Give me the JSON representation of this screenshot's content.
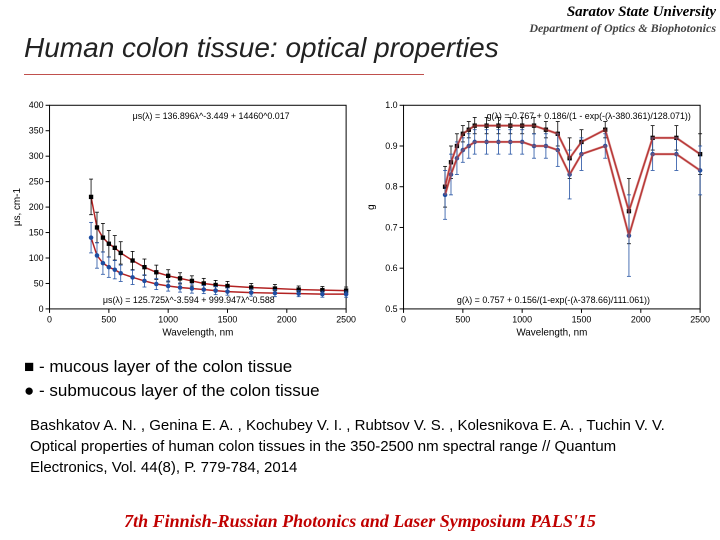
{
  "header": {
    "university": "Saratov State University",
    "department": "Department of Optics & Biophotonics"
  },
  "title": "Human colon tissue: optical properties",
  "chart_left": {
    "type": "scatter+line",
    "xlabel": "Wavelength, nm",
    "ylabel_html": "μs, cm-1",
    "xlim": [
      0,
      2500
    ],
    "xtick_step": 500,
    "ylim": [
      0,
      400
    ],
    "ytick_step": 50,
    "eq_top": "μs(λ) = 136.896λ^-3.449 + 14460^0.017",
    "eq_bottom": "μs(λ) = 125.725λ^-3.594 + 999.947λ^-0.588",
    "background": "#ffffff",
    "series": [
      {
        "name": "mucous",
        "marker": "square",
        "color_marker": "#000000",
        "color_line": "#b22222",
        "x": [
          350,
          400,
          450,
          500,
          550,
          600,
          700,
          800,
          900,
          1000,
          1100,
          1200,
          1300,
          1400,
          1500,
          1700,
          1900,
          2100,
          2300,
          2500
        ],
        "y": [
          220,
          160,
          140,
          128,
          120,
          110,
          95,
          82,
          72,
          65,
          60,
          55,
          50,
          47,
          45,
          42,
          40,
          38,
          37,
          36
        ],
        "yerr": [
          35,
          30,
          28,
          26,
          24,
          22,
          18,
          16,
          14,
          12,
          11,
          10,
          10,
          9,
          9,
          8,
          8,
          7,
          7,
          7
        ]
      },
      {
        "name": "submucous",
        "marker": "circle",
        "color_marker": "#1f4ea1",
        "color_line": "#b22222",
        "x": [
          350,
          400,
          450,
          500,
          550,
          600,
          700,
          800,
          900,
          1000,
          1100,
          1200,
          1300,
          1400,
          1500,
          1700,
          1900,
          2100,
          2300,
          2500
        ],
        "y": [
          140,
          105,
          90,
          82,
          77,
          70,
          62,
          55,
          49,
          45,
          42,
          40,
          38,
          36,
          34,
          32,
          31,
          30,
          29,
          29
        ],
        "yerr": [
          30,
          25,
          22,
          20,
          18,
          16,
          14,
          12,
          11,
          10,
          9,
          9,
          8,
          8,
          7,
          7,
          7,
          6,
          6,
          6
        ]
      }
    ]
  },
  "chart_right": {
    "type": "scatter+line",
    "xlabel": "Wavelength, nm",
    "ylabel": "g",
    "xlim": [
      0,
      2500
    ],
    "xtick_step": 500,
    "ylim": [
      0.5,
      1.0
    ],
    "ytick_step": 0.1,
    "eq_top": "g(λ) = 0.767 + 0.186/(1 - exp(-(λ-380.361)/128.071))",
    "eq_bottom": "g(λ) = 0.757 + 0.156/(1-exp(-(λ-378.66)/111.061))",
    "background": "#ffffff",
    "series": [
      {
        "name": "mucous",
        "marker": "square",
        "color_marker": "#000000",
        "color_line": "#b22222",
        "x": [
          350,
          400,
          450,
          500,
          550,
          600,
          700,
          800,
          900,
          1000,
          1100,
          1200,
          1300,
          1400,
          1500,
          1700,
          1900,
          2100,
          2300,
          2500
        ],
        "y": [
          0.8,
          0.86,
          0.9,
          0.93,
          0.94,
          0.95,
          0.95,
          0.95,
          0.95,
          0.95,
          0.95,
          0.94,
          0.93,
          0.87,
          0.91,
          0.94,
          0.74,
          0.92,
          0.92,
          0.88
        ],
        "yerr": [
          0.05,
          0.04,
          0.03,
          0.02,
          0.02,
          0.02,
          0.02,
          0.02,
          0.02,
          0.02,
          0.02,
          0.02,
          0.03,
          0.05,
          0.03,
          0.02,
          0.08,
          0.03,
          0.03,
          0.05
        ]
      },
      {
        "name": "submucous",
        "marker": "circle",
        "color_marker": "#1f4ea1",
        "color_line": "#b22222",
        "x": [
          350,
          400,
          450,
          500,
          550,
          600,
          700,
          800,
          900,
          1000,
          1100,
          1200,
          1300,
          1400,
          1500,
          1700,
          1900,
          2100,
          2300,
          2500
        ],
        "y": [
          0.78,
          0.83,
          0.87,
          0.89,
          0.9,
          0.91,
          0.91,
          0.91,
          0.91,
          0.91,
          0.9,
          0.9,
          0.89,
          0.83,
          0.88,
          0.9,
          0.68,
          0.88,
          0.88,
          0.84
        ],
        "yerr": [
          0.06,
          0.05,
          0.04,
          0.03,
          0.03,
          0.03,
          0.03,
          0.03,
          0.03,
          0.03,
          0.03,
          0.03,
          0.04,
          0.06,
          0.04,
          0.03,
          0.1,
          0.04,
          0.04,
          0.06
        ]
      }
    ],
    "envelope_color": "#c0504d"
  },
  "legend": {
    "row1": "■ - mucous layer of the colon tissue",
    "row2": "● - submucous layer of the colon tissue"
  },
  "citation": "Bashkatov A. N. , Genina E. A. , Kochubey V. I. , Rubtsov V. S. , Kolesnikova E. A. , Tuchin V. V. Optical properties of human colon tissues in the 350-2500 nm spectral range // Quantum Electronics, Vol. 44(8), P. 779-784, 2014",
  "footer": "7th Finnish-Russian Photonics and Laser Symposium PALS'15"
}
